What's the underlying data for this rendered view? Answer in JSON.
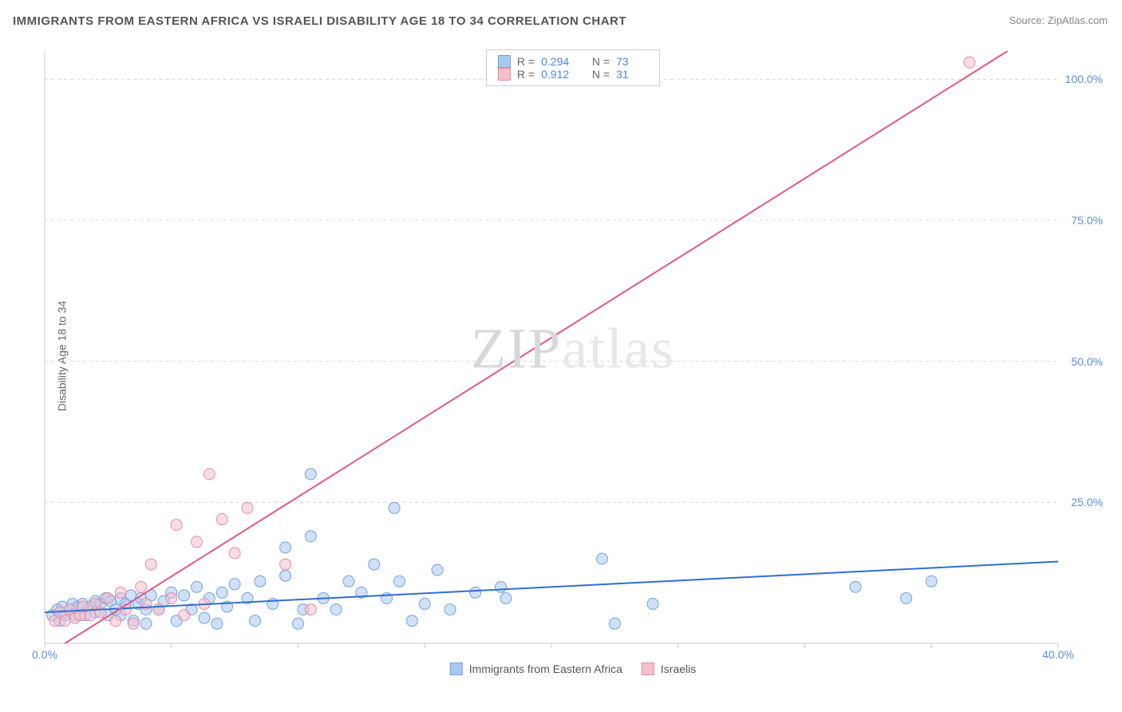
{
  "title": "IMMIGRANTS FROM EASTERN AFRICA VS ISRAELI DISABILITY AGE 18 TO 34 CORRELATION CHART",
  "source": "Source: ZipAtlas.com",
  "y_axis_label": "Disability Age 18 to 34",
  "watermark": "ZIPatlas",
  "chart": {
    "type": "scatter",
    "background_color": "#ffffff",
    "grid_color": "#d8d8d8",
    "axis_color": "#cccccc",
    "tick_color": "#cccccc",
    "tick_label_color": "#5a8ed8",
    "xlim": [
      0,
      40
    ],
    "ylim": [
      0,
      105
    ],
    "x_ticks": [
      0,
      5,
      10,
      15,
      20,
      25,
      30,
      35,
      40
    ],
    "x_tick_labels": [
      "0.0%",
      "",
      "",
      "",
      "",
      "",
      "",
      "",
      "40.0%"
    ],
    "y_ticks": [
      25,
      50,
      75,
      100
    ],
    "y_tick_labels": [
      "25.0%",
      "50.0%",
      "75.0%",
      "100.0%"
    ],
    "marker_radius": 7,
    "marker_opacity": 0.55,
    "line_width": 2,
    "series": [
      {
        "name": "Immigrants from Eastern Africa",
        "color_fill": "#a9c8f0",
        "color_stroke": "#6fa3e0",
        "line_color": "#2f6fd0",
        "R": "0.294",
        "N": "73",
        "trend": {
          "x1": 0,
          "y1": 5.5,
          "x2": 40,
          "y2": 14.5
        },
        "points": [
          [
            0.3,
            5
          ],
          [
            0.5,
            6
          ],
          [
            0.6,
            4
          ],
          [
            0.7,
            6.5
          ],
          [
            0.8,
            5
          ],
          [
            1.0,
            6
          ],
          [
            1.1,
            7
          ],
          [
            1.2,
            5
          ],
          [
            1.3,
            6.5
          ],
          [
            1.5,
            7
          ],
          [
            1.6,
            5
          ],
          [
            1.8,
            6.5
          ],
          [
            2.0,
            7.5
          ],
          [
            2.0,
            5.5
          ],
          [
            2.2,
            7
          ],
          [
            2.4,
            8
          ],
          [
            2.5,
            5
          ],
          [
            2.6,
            7.5
          ],
          [
            2.8,
            6
          ],
          [
            3.0,
            8
          ],
          [
            3.0,
            5
          ],
          [
            3.2,
            7
          ],
          [
            3.4,
            8.5
          ],
          [
            3.5,
            4
          ],
          [
            3.7,
            7
          ],
          [
            3.8,
            8
          ],
          [
            4.0,
            6
          ],
          [
            4.0,
            3.5
          ],
          [
            4.2,
            8.5
          ],
          [
            4.5,
            6
          ],
          [
            4.7,
            7.5
          ],
          [
            5.0,
            9
          ],
          [
            5.2,
            4
          ],
          [
            5.5,
            8.5
          ],
          [
            5.8,
            6
          ],
          [
            6.0,
            10
          ],
          [
            6.3,
            4.5
          ],
          [
            6.5,
            8
          ],
          [
            6.8,
            3.5
          ],
          [
            7.0,
            9
          ],
          [
            7.2,
            6.5
          ],
          [
            7.5,
            10.5
          ],
          [
            8.0,
            8
          ],
          [
            8.3,
            4
          ],
          [
            8.5,
            11
          ],
          [
            9.0,
            7
          ],
          [
            9.5,
            12
          ],
          [
            9.5,
            17
          ],
          [
            10.0,
            3.5
          ],
          [
            10.2,
            6
          ],
          [
            10.5,
            19
          ],
          [
            10.5,
            30
          ],
          [
            11.0,
            8
          ],
          [
            11.5,
            6
          ],
          [
            12.0,
            11
          ],
          [
            12.5,
            9
          ],
          [
            13.0,
            14
          ],
          [
            13.5,
            8
          ],
          [
            13.8,
            24
          ],
          [
            14.0,
            11
          ],
          [
            14.5,
            4
          ],
          [
            15.0,
            7
          ],
          [
            15.5,
            13
          ],
          [
            16.0,
            6
          ],
          [
            17.0,
            9
          ],
          [
            18.0,
            10
          ],
          [
            18.2,
            8
          ],
          [
            22.0,
            15
          ],
          [
            22.5,
            3.5
          ],
          [
            24.0,
            7
          ],
          [
            32.0,
            10
          ],
          [
            34.0,
            8
          ],
          [
            35.0,
            11
          ]
        ]
      },
      {
        "name": "Israelis",
        "color_fill": "#f4c0cd",
        "color_stroke": "#e88ba4",
        "line_color": "#e05a84",
        "R": "0.912",
        "N": "31",
        "trend": {
          "x1": 0.8,
          "y1": 0,
          "x2": 38,
          "y2": 105
        },
        "points": [
          [
            0.4,
            4
          ],
          [
            0.6,
            5.5
          ],
          [
            0.8,
            4
          ],
          [
            1.0,
            6
          ],
          [
            1.2,
            4.5
          ],
          [
            1.4,
            5
          ],
          [
            1.5,
            6.5
          ],
          [
            1.8,
            5
          ],
          [
            2.0,
            7
          ],
          [
            2.2,
            5.5
          ],
          [
            2.5,
            8
          ],
          [
            2.8,
            4
          ],
          [
            3.0,
            9
          ],
          [
            3.2,
            6
          ],
          [
            3.5,
            3.5
          ],
          [
            3.8,
            10
          ],
          [
            4.0,
            7
          ],
          [
            4.2,
            14
          ],
          [
            4.5,
            6
          ],
          [
            5.0,
            8
          ],
          [
            5.2,
            21
          ],
          [
            5.5,
            5
          ],
          [
            6.0,
            18
          ],
          [
            6.3,
            7
          ],
          [
            6.5,
            30
          ],
          [
            7.0,
            22
          ],
          [
            7.5,
            16
          ],
          [
            8.0,
            24
          ],
          [
            9.5,
            14
          ],
          [
            10.5,
            6
          ],
          [
            36.5,
            103
          ]
        ]
      }
    ],
    "legend_bottom": [
      {
        "label": "Immigrants from Eastern Africa",
        "fill": "#a9c8f0",
        "stroke": "#6fa3e0"
      },
      {
        "label": "Israelis",
        "fill": "#f4c0cd",
        "stroke": "#e88ba4"
      }
    ]
  }
}
